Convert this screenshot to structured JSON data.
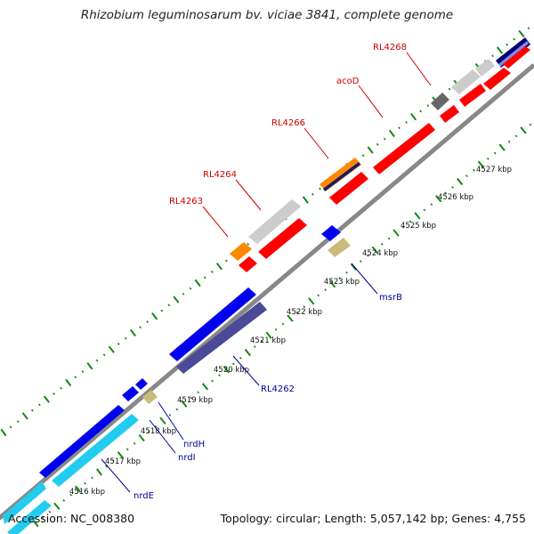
{
  "title": "Rhizobium leguminosarum bv. viciae 3841, complete genome",
  "footer": {
    "accession": "Accession: NC_008380",
    "topology": "Topology: circular; Length: 5,057,142 bp; Genes: 4,755"
  },
  "colors": {
    "cds_red": "#ff0000",
    "cds_blue": "#0000ee",
    "cds_cyan": "#22ccee",
    "cds_navy": "#4a4a99",
    "cds_orange": "#ff8800",
    "cds_khaki": "#c8bc78",
    "cds_grey": "#cccccc",
    "cds_darkgrey": "#666666",
    "backbone": "#888888",
    "tick_green": "#118811",
    "label_red": "#cc0000",
    "label_blue": "#000099"
  },
  "ticks": [
    "4516 kbp",
    "4517 kbp",
    "4518 kbp",
    "4519 kbp",
    "4520 kbp",
    "4521 kbp",
    "4522 kbp",
    "4523 kbp",
    "4524 kbp",
    "4525 kbp",
    "4526 kbp",
    "4527 kbp"
  ],
  "gene_labels": {
    "red": [
      "RL4263",
      "RL4264",
      "RL4266",
      "acoD",
      "RL4268"
    ],
    "blue": [
      "msrB",
      "RL4262",
      "nrdH",
      "nrdI",
      "nrdE"
    ]
  }
}
